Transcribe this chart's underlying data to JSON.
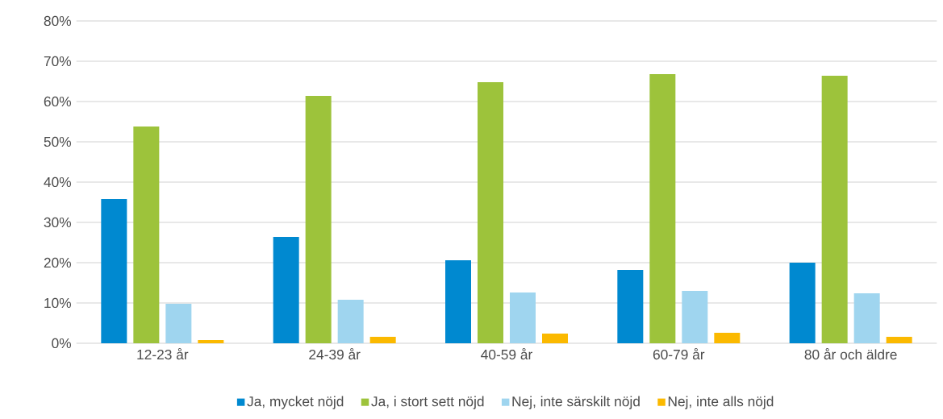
{
  "chart_data": {
    "type": "bar",
    "categories": [
      "12-23 år",
      "24-39 år",
      "40-59 år",
      "60-79 år",
      "80 år och äldre"
    ],
    "series": [
      {
        "name": "Ja, mycket nöjd",
        "color": "#0089d0",
        "values": [
          35.8,
          26.4,
          20.6,
          18.2,
          20.0
        ]
      },
      {
        "name": "Ja, i stort sett nöjd",
        "color": "#9dc33b",
        "values": [
          53.8,
          61.4,
          64.8,
          66.8,
          66.4
        ]
      },
      {
        "name": "Nej, inte särskilt nöjd",
        "color": "#9fd5ef",
        "values": [
          9.8,
          10.8,
          12.6,
          13.0,
          12.4
        ]
      },
      {
        "name": "Nej, inte alls nöjd",
        "color": "#fbb900",
        "values": [
          0.8,
          1.6,
          2.4,
          2.6,
          1.6
        ]
      }
    ],
    "ylim": [
      0,
      80
    ],
    "yticks": [
      {
        "value": 0,
        "label": "0%"
      },
      {
        "value": 10,
        "label": "10%"
      },
      {
        "value": 20,
        "label": "20%"
      },
      {
        "value": 30,
        "label": "30%"
      },
      {
        "value": 40,
        "label": "40%"
      },
      {
        "value": 50,
        "label": "50%"
      },
      {
        "value": 60,
        "label": "60%"
      },
      {
        "value": 70,
        "label": "70%"
      },
      {
        "value": 80,
        "label": "80%"
      }
    ],
    "grid": "y",
    "legend": "bottom"
  }
}
